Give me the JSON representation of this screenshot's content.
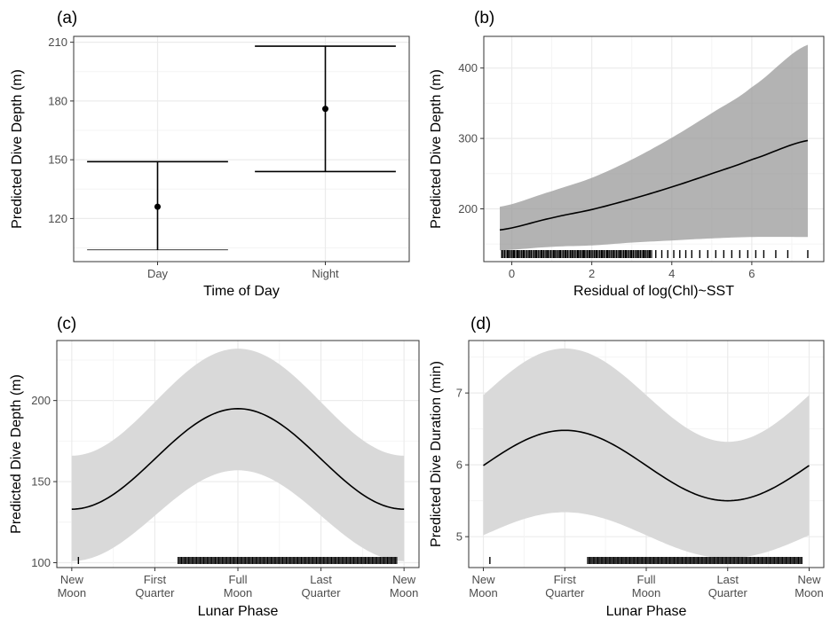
{
  "colors": {
    "ci_dark": "#999999",
    "ci_light": "#d9d9d9",
    "line": "#000000",
    "grid_major": "#ebebeb",
    "grid_minor": "#f4f4f4",
    "panel_border": "#333333"
  },
  "chart_data": [
    {
      "tag": "(a)",
      "type": "errorbar",
      "xlabel": "Time of Day",
      "ylabel": "Predicted Dive Depth (m)",
      "categories": [
        "Day",
        "Night"
      ],
      "values": [
        126,
        176
      ],
      "lower": [
        104,
        144
      ],
      "upper": [
        149,
        208
      ],
      "ylim": [
        98,
        213
      ],
      "yticks": [
        120,
        150,
        180,
        210
      ],
      "grid": true
    },
    {
      "tag": "(b)",
      "type": "line",
      "xlabel": "Residual of log(Chl)~SST",
      "ylabel": "Predicted Dive Depth (m)",
      "x": [
        -0.3,
        1,
        2,
        3,
        4,
        5,
        6,
        7.4
      ],
      "y": [
        170,
        187,
        199,
        214,
        231,
        250,
        270,
        297
      ],
      "lower": [
        141,
        146,
        148,
        152,
        155,
        158,
        160,
        160
      ],
      "upper": [
        203,
        225,
        244,
        270,
        301,
        336,
        373,
        433
      ],
      "xlim": [
        -0.7,
        7.8
      ],
      "ylim": [
        125,
        445
      ],
      "xticks": [
        0,
        2,
        4,
        6
      ],
      "yticks": [
        200,
        300,
        400
      ],
      "rug": [
        -0.25,
        -0.1,
        0.05,
        0.15,
        0.3,
        0.45,
        0.6,
        0.75,
        0.9,
        1.05,
        1.2,
        1.35,
        1.5,
        1.65,
        1.8,
        1.95,
        2.1,
        2.25,
        2.4,
        2.55,
        2.7,
        2.85,
        3.0,
        3.15,
        3.3,
        3.45,
        3.6,
        3.75,
        3.9,
        4.05,
        4.2,
        4.35,
        4.5,
        4.7,
        4.9,
        5.1,
        5.3,
        5.5,
        5.7,
        5.9,
        6.1,
        6.3,
        6.6,
        6.9,
        7.4
      ],
      "grid": true
    },
    {
      "tag": "(c)",
      "type": "line",
      "xlabel": "Lunar Phase",
      "ylabel": "Predicted Dive Depth (m)",
      "xtick_labels": [
        [
          "New",
          "Moon"
        ],
        [
          "First",
          "Quarter"
        ],
        [
          "Full",
          "Moon"
        ],
        [
          "Last",
          "Quarter"
        ],
        [
          "New",
          "Moon"
        ]
      ],
      "xticks": [
        0,
        0.25,
        0.5,
        0.75,
        1
      ],
      "xlim": [
        -0.045,
        1.045
      ],
      "ylim": [
        97,
        237
      ],
      "yticks": [
        100,
        150,
        200
      ],
      "curve": {
        "mean": 164,
        "amp": 31,
        "peak_phase": 0.5
      },
      "ci_lower": {
        "mean": 129,
        "amp": 28
      },
      "ci_upper": {
        "mean": 199,
        "amp": 33
      },
      "rug_range": [
        0.32,
        0.98
      ],
      "rug_extra": [
        0.02
      ],
      "grid": true
    },
    {
      "tag": "(d)",
      "type": "line",
      "xlabel": "Lunar Phase",
      "ylabel": "Predicted Dive Duration (min)",
      "xtick_labels": [
        [
          "New",
          "Moon"
        ],
        [
          "First",
          "Quarter"
        ],
        [
          "Full",
          "Moon"
        ],
        [
          "Last",
          "Quarter"
        ],
        [
          "New",
          "Moon"
        ]
      ],
      "xticks": [
        0,
        0.25,
        0.5,
        0.75,
        1
      ],
      "xlim": [
        -0.045,
        1.045
      ],
      "ylim": [
        4.57,
        7.73
      ],
      "yticks": [
        5,
        6,
        7
      ],
      "curve": {
        "mean": 5.99,
        "amp": 0.49,
        "peak_phase": 0.25
      },
      "ci_lower": {
        "mean": 5.02,
        "amp": 0.32
      },
      "ci_upper": {
        "mean": 6.97,
        "amp": 0.65
      },
      "rug_range": [
        0.32,
        0.98
      ],
      "rug_extra": [
        0.02
      ],
      "grid": true
    }
  ]
}
